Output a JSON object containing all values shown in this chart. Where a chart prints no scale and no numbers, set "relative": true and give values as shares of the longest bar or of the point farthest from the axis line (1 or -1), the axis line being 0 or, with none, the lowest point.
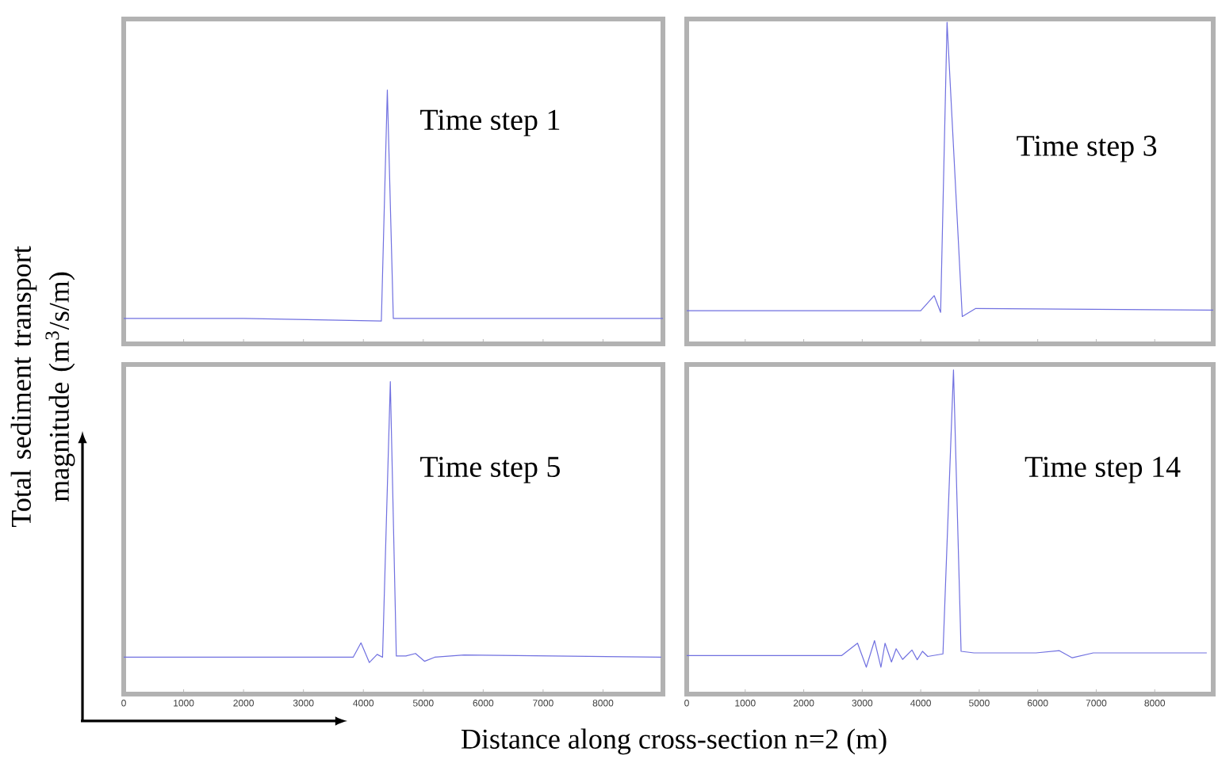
{
  "chart_data": [
    {
      "type": "line",
      "relative": true,
      "ylabel": "Total sediment transport magnitude (m$^{3}$/s/m)",
      "xlim": [
        0,
        9000
      ],
      "xticks": [
        {
          "value": 0,
          "label": null
        },
        {
          "value": 1000,
          "label": null
        },
        {
          "value": 2000,
          "label": null
        },
        {
          "value": 3000,
          "label": null
        },
        {
          "value": 4000,
          "label": null
        },
        {
          "value": 5000,
          "label": null
        },
        {
          "value": 6000,
          "label": null
        },
        {
          "value": 7000,
          "label": null
        },
        {
          "value": 8000,
          "label": null
        }
      ],
      "tick_labels": false,
      "annotations": [
        "Time step 1"
      ],
      "series": [
        {
          "color": "#7070e0",
          "x": [
            0,
            2000,
            4300,
            4400,
            4500,
            9000
          ],
          "values": [
            0.1,
            0.1,
            0.09,
            1,
            0.1,
            0.1
          ]
        }
      ]
    },
    {
      "type": "line",
      "relative": true,
      "xlim": [
        0,
        9000
      ],
      "xticks": [
        {
          "value": 0,
          "label": null
        },
        {
          "value": 1000,
          "label": null
        },
        {
          "value": 2000,
          "label": null
        },
        {
          "value": 3000,
          "label": null
        },
        {
          "value": 4000,
          "label": null
        },
        {
          "value": 5000,
          "label": null
        },
        {
          "value": 6000,
          "label": null
        },
        {
          "value": 7000,
          "label": null
        },
        {
          "value": 8000,
          "label": null
        }
      ],
      "tick_labels": false,
      "annotations": [
        "Time step 3"
      ],
      "series": [
        {
          "color": "#7070e0",
          "x": [
            0,
            4000,
            4230,
            4340,
            4450,
            4710,
            4940,
            9000
          ],
          "values": [
            0.103,
            0.103,
            0.15,
            0.098,
            1,
            0.085,
            0.11,
            0.105
          ]
        }
      ]
    },
    {
      "type": "line",
      "relative": true,
      "xlabel": "Distance along cross-section n=2 (m)",
      "xlim": [
        0,
        9000
      ],
      "xticks": [
        0,
        1000,
        2000,
        3000,
        4000,
        5000,
        6000,
        7000,
        8000
      ],
      "tick_labels": "x",
      "annotations": [
        "Time step 5"
      ],
      "series": [
        {
          "color": "#7070e0",
          "x": [
            0,
            3830,
            3960,
            4100,
            4230,
            4320,
            4450,
            4550,
            4710,
            4870,
            5020,
            5190,
            5680,
            8970
          ],
          "values": [
            0.118,
            0.118,
            0.164,
            0.101,
            0.127,
            0.118,
            1,
            0.122,
            0.122,
            0.13,
            0.105,
            0.118,
            0.125,
            0.118
          ]
        }
      ]
    },
    {
      "type": "line",
      "relative": true,
      "xlim": [
        0,
        9000
      ],
      "xticks": [
        0,
        1000,
        2000,
        3000,
        4000,
        5000,
        6000,
        7000,
        8000
      ],
      "tick_labels": "x",
      "annotations": [
        "Time step 14"
      ],
      "series": [
        {
          "color": "#7070e0",
          "x": [
            0,
            2650,
            2920,
            3070,
            3210,
            3320,
            3390,
            3500,
            3580,
            3690,
            3850,
            3940,
            4030,
            4120,
            4380,
            4560,
            4690,
            4910,
            5970,
            6370,
            6590,
            6950,
            8890
          ],
          "values": [
            0.119,
            0.119,
            0.157,
            0.083,
            0.165,
            0.083,
            0.157,
            0.099,
            0.14,
            0.107,
            0.136,
            0.106,
            0.132,
            0.116,
            0.124,
            1,
            0.132,
            0.127,
            0.127,
            0.134,
            0.112,
            0.127,
            0.127
          ]
        }
      ]
    }
  ]
}
